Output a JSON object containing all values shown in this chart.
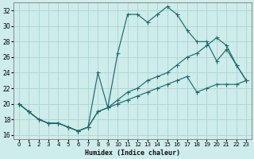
{
  "xlabel": "Humidex (Indice chaleur)",
  "bg_color": "#ceecea",
  "grid_color": "#aed8d5",
  "line_color": "#1a6b6b",
  "xlim": [
    -0.5,
    23.5
  ],
  "ylim": [
    15.5,
    33.0
  ],
  "xticks": [
    0,
    1,
    2,
    3,
    4,
    5,
    6,
    7,
    8,
    9,
    10,
    11,
    12,
    13,
    14,
    15,
    16,
    17,
    18,
    19,
    20,
    21,
    22,
    23
  ],
  "yticks": [
    16,
    18,
    20,
    22,
    24,
    26,
    28,
    30,
    32
  ],
  "curve1_x": [
    0,
    1,
    2,
    3,
    4,
    5,
    6,
    7,
    8,
    9,
    10,
    11,
    12,
    13,
    14,
    15,
    16,
    17,
    18,
    19,
    20,
    21,
    22,
    23
  ],
  "curve1_y": [
    20.0,
    19.0,
    18.0,
    17.5,
    17.5,
    17.0,
    16.5,
    17.0,
    24.0,
    19.5,
    26.5,
    31.5,
    31.5,
    30.5,
    31.5,
    32.5,
    31.5,
    29.5,
    28.0,
    28.0,
    25.5,
    27.0,
    25.0,
    23.0
  ],
  "curve2_x": [
    0,
    1,
    2,
    3,
    4,
    5,
    6,
    7,
    8,
    9,
    10,
    11,
    12,
    13,
    14,
    15,
    16,
    17,
    18,
    19,
    20,
    21,
    22,
    23
  ],
  "curve2_y": [
    20.0,
    19.0,
    18.0,
    17.5,
    17.5,
    17.0,
    16.5,
    17.0,
    19.0,
    19.5,
    20.5,
    21.5,
    22.0,
    23.0,
    23.5,
    24.0,
    25.0,
    26.0,
    26.5,
    27.5,
    28.5,
    27.5,
    25.0,
    23.0
  ],
  "curve3_x": [
    0,
    1,
    2,
    3,
    4,
    5,
    6,
    7,
    8,
    9,
    10,
    11,
    12,
    13,
    14,
    15,
    16,
    17,
    18,
    19,
    20,
    21,
    22,
    23
  ],
  "curve3_y": [
    20.0,
    19.0,
    18.0,
    17.5,
    17.5,
    17.0,
    16.5,
    17.0,
    19.0,
    19.5,
    20.0,
    20.5,
    21.0,
    21.5,
    22.0,
    22.5,
    23.0,
    23.5,
    21.5,
    22.0,
    22.5,
    22.5,
    22.5,
    23.0
  ]
}
